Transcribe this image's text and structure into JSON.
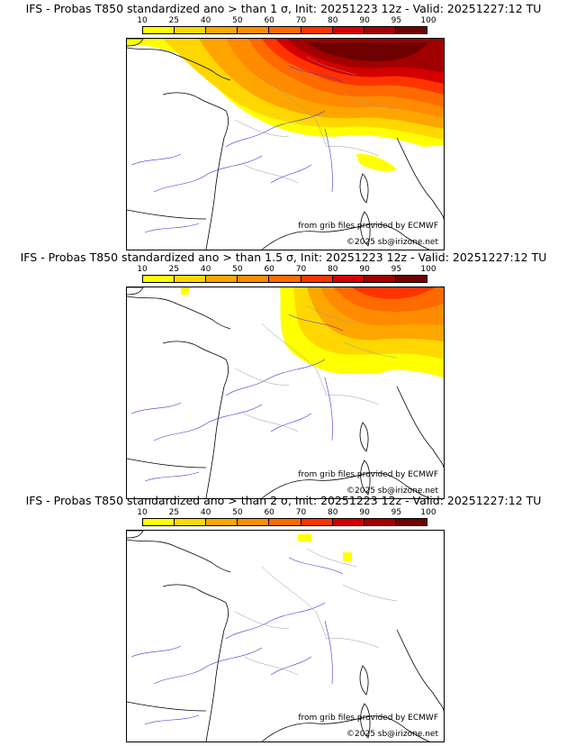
{
  "colors": {
    "scale": [
      "#ffff00",
      "#ffd700",
      "#ffa500",
      "#ff8c00",
      "#ff6a00",
      "#ff3300",
      "#d40000",
      "#a00000",
      "#6e0000"
    ],
    "coast": "#000000",
    "rivers": "#3a3ad6",
    "borders": "#9a9a9a"
  },
  "colorbar": {
    "labels": [
      "10",
      "25",
      "40",
      "50",
      "60",
      "70",
      "80",
      "90",
      "95",
      "100"
    ]
  },
  "panels": [
    {
      "title": "IFS - Probas T850  standardized ano > than 1 σ, Init: 20251223 12z - Valid: 20251227:12 TU",
      "source": "from grib files provided by ECMWF",
      "copyright": "©2025 sb@irizone.net"
    },
    {
      "title": "IFS - Probas T850  standardized ano > than 1.5 σ, Init: 20251223 12z - Valid: 20251227:12 TU",
      "source": "from grib files provided by ECMWF",
      "copyright": "©2025 sb@irizone.net"
    },
    {
      "title": "IFS - Probas T850  standardized ano > than 2 σ, Init: 20251223 12z - Valid: 20251227:12 TU",
      "source": "from grib files provided by ECMWF",
      "copyright": "©2025 sb@irizone.net"
    }
  ]
}
